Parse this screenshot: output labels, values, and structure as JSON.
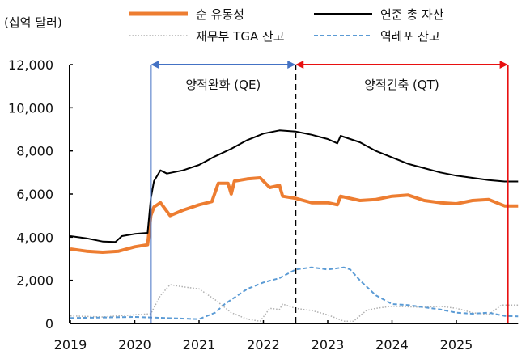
{
  "chart_data": {
    "type": "line",
    "unit_label": "(십억 달러)",
    "xlim": [
      2019,
      2025.96
    ],
    "ylim": [
      0,
      12000
    ],
    "yticks": [
      "0",
      "2,000",
      "4,000",
      "6,000",
      "8,000",
      "10,000",
      "12,000"
    ],
    "ytick_values": [
      0,
      2000,
      4000,
      6000,
      8000,
      10000,
      12000
    ],
    "xticks": [
      "2019",
      "2020",
      "2021",
      "2022",
      "2023",
      "2024",
      "2025"
    ],
    "xtick_values": [
      2019,
      2020,
      2021,
      2022,
      2023,
      2024,
      2025
    ],
    "grid": false,
    "legend_position": "top",
    "series": [
      {
        "name": "순 유동성",
        "color": "#ED7D31",
        "style": "solid-thick",
        "x": [
          2019.0,
          2019.25,
          2019.5,
          2019.75,
          2020.0,
          2020.2,
          2020.25,
          2020.3,
          2020.4,
          2020.55,
          2020.75,
          2021.0,
          2021.2,
          2021.3,
          2021.45,
          2021.5,
          2021.55,
          2021.75,
          2021.95,
          2022.1,
          2022.25,
          2022.3,
          2022.5,
          2022.75,
          2023.0,
          2023.15,
          2023.2,
          2023.5,
          2023.75,
          2024.0,
          2024.25,
          2024.5,
          2024.75,
          2025.0,
          2025.25,
          2025.5,
          2025.75,
          2025.96
        ],
        "y": [
          3450,
          3350,
          3300,
          3350,
          3550,
          3650,
          5000,
          5400,
          5600,
          5000,
          5250,
          5500,
          5650,
          6500,
          6500,
          6000,
          6600,
          6700,
          6750,
          6300,
          6400,
          5900,
          5800,
          5600,
          5600,
          5500,
          5900,
          5700,
          5750,
          5900,
          5950,
          5700,
          5600,
          5550,
          5700,
          5750,
          5450,
          5450
        ]
      },
      {
        "name": "연준 총 자산",
        "color": "#000000",
        "style": "solid",
        "x": [
          2019.0,
          2019.25,
          2019.5,
          2019.7,
          2019.8,
          2020.0,
          2020.2,
          2020.25,
          2020.3,
          2020.4,
          2020.5,
          2020.75,
          2021.0,
          2021.25,
          2021.5,
          2021.75,
          2022.0,
          2022.25,
          2022.5,
          2022.75,
          2023.0,
          2023.15,
          2023.2,
          2023.5,
          2023.75,
          2024.0,
          2024.25,
          2024.5,
          2024.75,
          2025.0,
          2025.25,
          2025.5,
          2025.75,
          2025.96
        ],
        "y": [
          4050,
          3950,
          3800,
          3780,
          4050,
          4150,
          4200,
          5800,
          6600,
          7100,
          6950,
          7100,
          7350,
          7750,
          8100,
          8500,
          8800,
          8950,
          8900,
          8750,
          8550,
          8350,
          8700,
          8400,
          8000,
          7700,
          7400,
          7200,
          7000,
          6850,
          6750,
          6650,
          6580,
          6580
        ]
      },
      {
        "name": "재무부 TGA 잔고",
        "color": "#B0B0B0",
        "style": "dotted",
        "x": [
          2019.0,
          2019.5,
          2020.0,
          2020.25,
          2020.4,
          2020.55,
          2020.75,
          2021.0,
          2021.25,
          2021.5,
          2021.75,
          2021.95,
          2022.1,
          2022.25,
          2022.3,
          2022.5,
          2022.75,
          2023.0,
          2023.25,
          2023.4,
          2023.6,
          2023.75,
          2024.0,
          2024.5,
          2024.75,
          2025.0,
          2025.25,
          2025.5,
          2025.7,
          2025.96
        ],
        "y": [
          350,
          300,
          400,
          450,
          1300,
          1800,
          1700,
          1600,
          1100,
          500,
          200,
          100,
          700,
          650,
          900,
          700,
          600,
          400,
          100,
          100,
          600,
          700,
          800,
          750,
          800,
          700,
          500,
          400,
          850,
          850
        ]
      },
      {
        "name": "역레포 잔고",
        "color": "#5B9BD5",
        "style": "dashed",
        "x": [
          2019.0,
          2020.0,
          2020.5,
          2021.0,
          2021.25,
          2021.4,
          2021.6,
          2021.75,
          2022.0,
          2022.25,
          2022.5,
          2022.75,
          2023.0,
          2023.25,
          2023.35,
          2023.5,
          2023.75,
          2024.0,
          2024.25,
          2024.5,
          2024.75,
          2025.0,
          2025.25,
          2025.5,
          2025.75,
          2025.96
        ],
        "y": [
          250,
          300,
          250,
          200,
          500,
          900,
          1300,
          1600,
          1900,
          2100,
          2500,
          2600,
          2500,
          2600,
          2500,
          2000,
          1300,
          900,
          850,
          750,
          650,
          500,
          450,
          500,
          350,
          330
        ]
      }
    ],
    "annotations": [
      {
        "label": "양적완화 (QE)",
        "from": 2020.25,
        "to": 2022.5,
        "color": "#4472C4"
      },
      {
        "label": "양적긴축 (QT)",
        "from": 2022.5,
        "to": 2025.8,
        "color": "#E81010"
      }
    ]
  }
}
